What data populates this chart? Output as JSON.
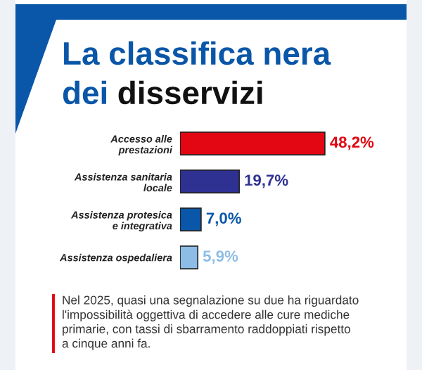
{
  "chart_data": {
    "type": "bar",
    "orientation": "horizontal",
    "title": "La classifica nera\ndei disservizi",
    "categories": [
      "Accesso alle\nprestazioni",
      "Assistenza sanitaria\nlocale",
      "Assistenza protesica\ne integrativa",
      "Assistenza ospedaliera"
    ],
    "values": [
      48.2,
      19.7,
      7.0,
      5.9
    ],
    "colors": [
      "#e30613",
      "#2e3192",
      "#0a56a8",
      "#8dbde6"
    ],
    "value_labels": [
      "48,2%",
      "19,7%",
      "7,0%",
      "5,9%"
    ],
    "grid": false,
    "legend": false,
    "annotations": [
      "Nel 2025, quasi una segnalazione su due ha riguardato\nl'impossibilità oggettiva di accedere alle cure mediche\nprimarie, con tassi di sbarramento raddoppiati rispetto\na cinque anni fa."
    ]
  }
}
